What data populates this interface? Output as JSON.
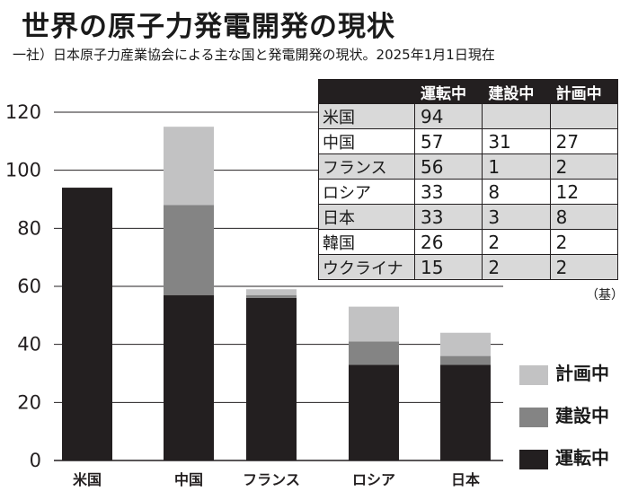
{
  "title": "世界の原子力発電開発の現状",
  "source": "一社）日本原子力産業協会による主な国と発電開発の現状。2025年1月1日現在",
  "unit_label": "（基）",
  "colors": {
    "operating": "#231f20",
    "construction": "#848484",
    "planned": "#c2c2c3"
  },
  "chart_data": {
    "type": "bar",
    "stacked": true,
    "title": "世界の原子力発電開発の現状",
    "categories": [
      "米国",
      "中国",
      "フランス",
      "ロシア",
      "日本"
    ],
    "series": [
      {
        "name": "運転中",
        "values": [
          94,
          57,
          56,
          33,
          33
        ]
      },
      {
        "name": "建設中",
        "values": [
          0,
          31,
          1,
          8,
          3
        ]
      },
      {
        "name": "計画中",
        "values": [
          0,
          27,
          2,
          12,
          8
        ]
      }
    ],
    "ylim": [
      0,
      120
    ],
    "yticks": [
      0,
      20,
      40,
      60,
      80,
      100,
      120
    ],
    "grid": true,
    "legend_position": "right"
  },
  "table": {
    "headers": [
      "",
      "運転中",
      "建設中",
      "計画中"
    ],
    "rows": [
      [
        "米国",
        "94",
        "",
        ""
      ],
      [
        "中国",
        "57",
        "31",
        "27"
      ],
      [
        "フランス",
        "56",
        "1",
        "2"
      ],
      [
        "ロシア",
        "33",
        "8",
        "12"
      ],
      [
        "日本",
        "33",
        "3",
        "8"
      ],
      [
        "韓国",
        "26",
        "2",
        "2"
      ],
      [
        "ウクライナ",
        "15",
        "2",
        "2"
      ]
    ]
  },
  "legend": [
    {
      "label": "計画中",
      "color": "#c2c2c3"
    },
    {
      "label": "建設中",
      "color": "#848484"
    },
    {
      "label": "運転中",
      "color": "#231f20"
    }
  ]
}
